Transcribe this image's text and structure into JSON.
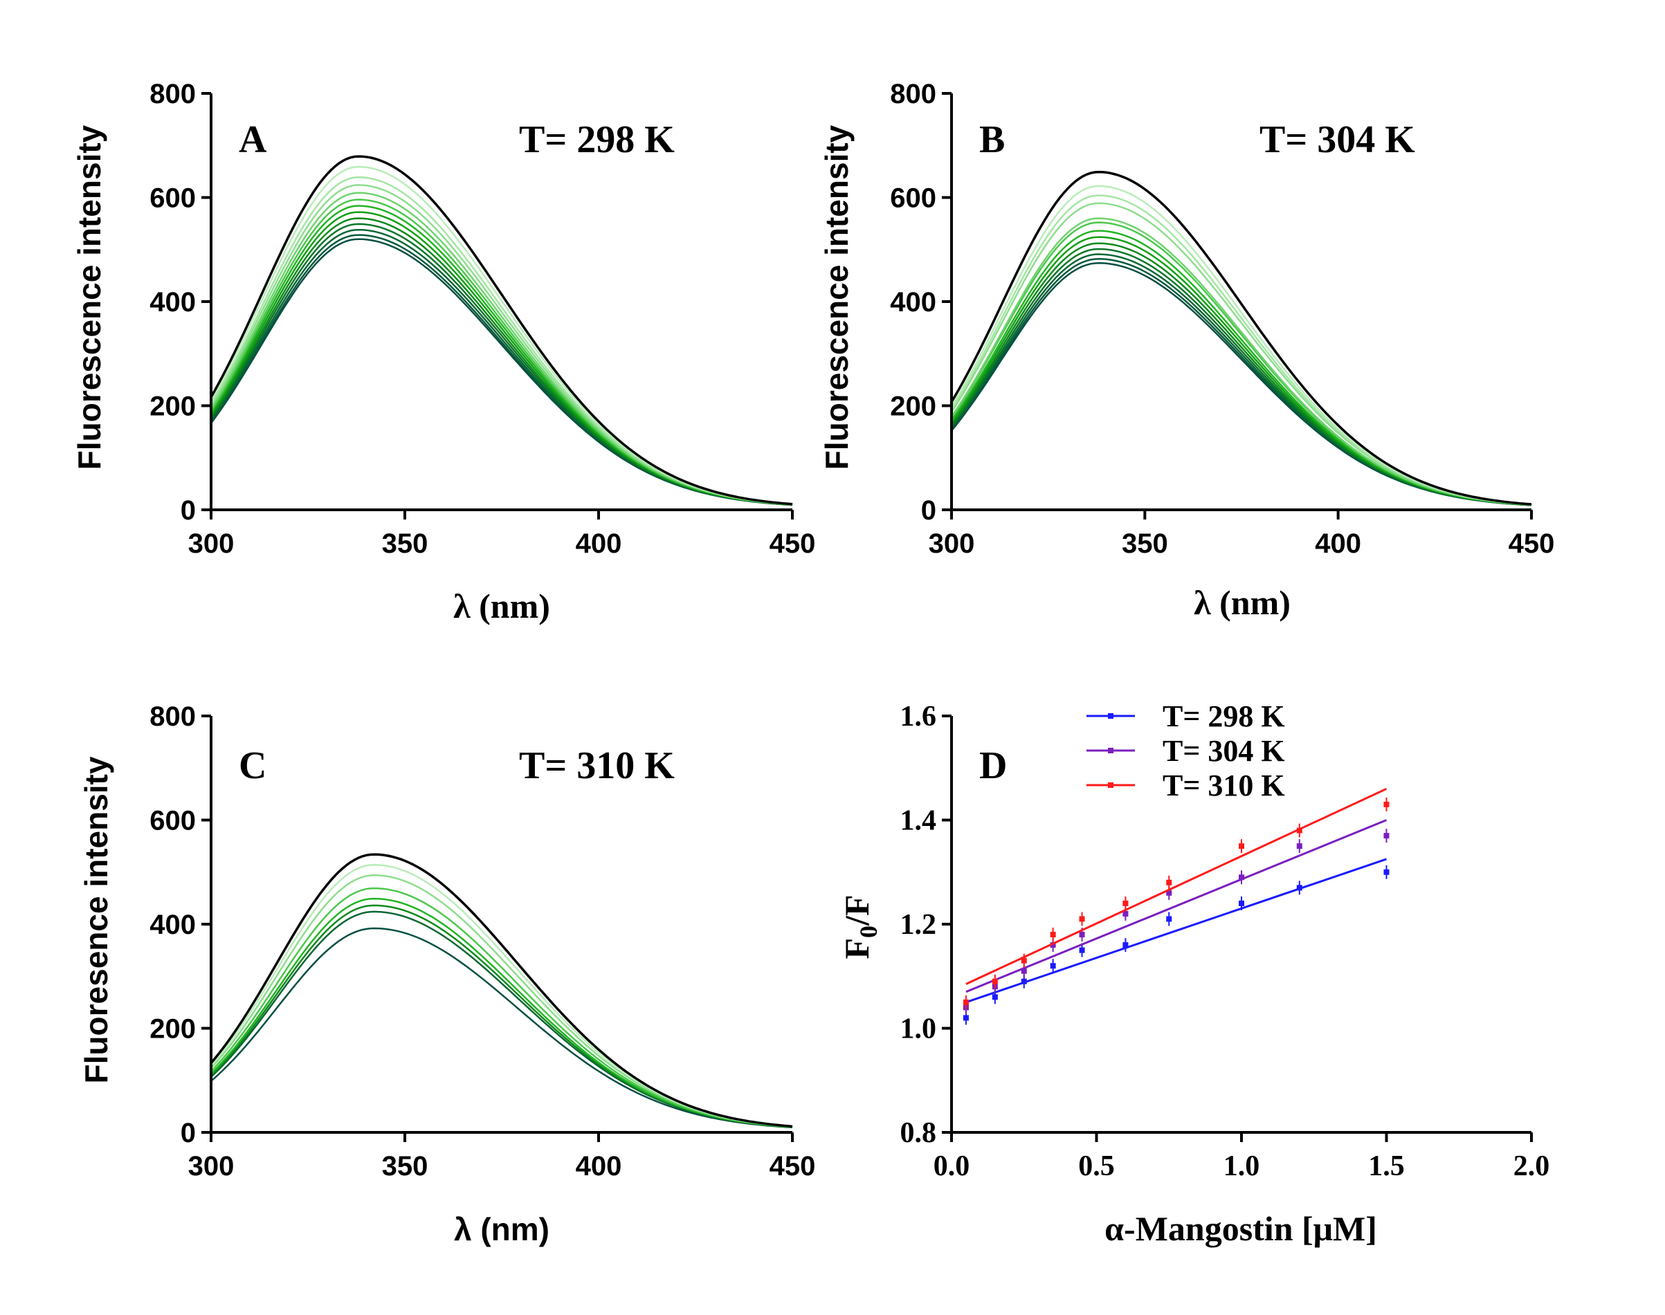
{
  "chart_data": [
    {
      "id": "A",
      "type": "line",
      "panel_label": "A",
      "annotation": "T= 298 K",
      "xlabel": "λ (nm)",
      "ylabel": "Fluorescence intensity",
      "xlim": [
        300,
        450
      ],
      "ylim": [
        0,
        800
      ],
      "xticks": [
        300,
        350,
        400,
        450
      ],
      "yticks": [
        0,
        200,
        400,
        600,
        800
      ],
      "peak_wavelength": 338,
      "series_peaks": [
        675,
        655,
        635,
        620,
        605,
        592,
        580,
        568,
        556,
        545,
        534,
        524,
        516
      ],
      "series_colors": [
        "#000000",
        "#b9ecb9",
        "#a4e6a4",
        "#8edd8e",
        "#6fd36f",
        "#4cc84c",
        "#22b422",
        "#11a011",
        "#0b8a1a",
        "#087628",
        "#076633",
        "#055a3b",
        "#054f42"
      ]
    },
    {
      "id": "B",
      "type": "line",
      "panel_label": "B",
      "annotation": "T= 304 K",
      "xlabel": "λ (nm)",
      "ylabel": "Fluorescence intensity",
      "xlim": [
        300,
        450
      ],
      "ylim": [
        0,
        800
      ],
      "xticks": [
        300,
        350,
        400,
        450
      ],
      "yticks": [
        0,
        200,
        400,
        600,
        800
      ],
      "peak_wavelength": 338,
      "series_peaks": [
        645,
        618,
        600,
        585,
        556,
        548,
        532,
        520,
        508,
        497,
        487,
        478,
        470
      ],
      "series_colors": [
        "#000000",
        "#b9ecb9",
        "#a4e6a4",
        "#8edd8e",
        "#6fd36f",
        "#4cc84c",
        "#22b422",
        "#11a011",
        "#0b8a1a",
        "#087628",
        "#076633",
        "#055a3b",
        "#054f42"
      ]
    },
    {
      "id": "C",
      "type": "line",
      "panel_label": "C",
      "annotation": "T= 310 K",
      "xlabel": "λ (nm)",
      "ylabel": "Fluoresence intensity",
      "xlim": [
        300,
        450
      ],
      "ylim": [
        0,
        800
      ],
      "xticks": [
        300,
        350,
        400,
        450
      ],
      "yticks": [
        0,
        200,
        400,
        600,
        800
      ],
      "peak_wavelength": 342,
      "series_peaks": [
        530,
        510,
        490,
        465,
        445,
        432,
        420,
        388
      ],
      "series_colors": [
        "#000000",
        "#b9ecb9",
        "#8edd8e",
        "#4cc84c",
        "#22b422",
        "#0b8a1a",
        "#076633",
        "#054f42"
      ]
    },
    {
      "id": "D",
      "type": "scatter",
      "panel_label": "D",
      "xlabel": "α-Mangostin [μM]",
      "ylabel": "F0/F",
      "ylabel_main": "F",
      "ylabel_sub": "0",
      "ylabel_tail": "/F",
      "xlim": [
        0.0,
        2.0
      ],
      "ylim": [
        0.8,
        1.6
      ],
      "xticks": [
        0.0,
        0.5,
        1.0,
        1.5,
        2.0
      ],
      "xtick_labels": [
        "0.0",
        "0.5",
        "1.0",
        "1.5",
        "2.0"
      ],
      "yticks": [
        0.8,
        1.0,
        1.2,
        1.4,
        1.6
      ],
      "ytick_labels": [
        "0.8",
        "1.0",
        "1.2",
        "1.4",
        "1.6"
      ],
      "legend_position": "top-center",
      "series": [
        {
          "name": "T= 298 K",
          "color": "#1a1aff",
          "x": [
            0.05,
            0.15,
            0.25,
            0.35,
            0.45,
            0.6,
            0.75,
            1.0,
            1.2,
            1.5
          ],
          "y": [
            1.02,
            1.06,
            1.09,
            1.12,
            1.15,
            1.16,
            1.21,
            1.24,
            1.27,
            1.3
          ],
          "fit": [
            [
              0.05,
              1.05
            ],
            [
              1.5,
              1.325
            ]
          ]
        },
        {
          "name": "T= 304 K",
          "color": "#7a1fbf",
          "x": [
            0.05,
            0.15,
            0.25,
            0.35,
            0.45,
            0.6,
            0.75,
            1.0,
            1.2,
            1.5
          ],
          "y": [
            1.04,
            1.08,
            1.11,
            1.16,
            1.18,
            1.22,
            1.26,
            1.29,
            1.35,
            1.37
          ],
          "fit": [
            [
              0.05,
              1.07
            ],
            [
              1.5,
              1.4
            ]
          ]
        },
        {
          "name": "T= 310 K",
          "color": "#ff1a1a",
          "x": [
            0.05,
            0.15,
            0.25,
            0.35,
            0.45,
            0.6,
            0.75,
            1.0,
            1.2,
            1.5
          ],
          "y": [
            1.05,
            1.09,
            1.13,
            1.18,
            1.21,
            1.24,
            1.28,
            1.35,
            1.38,
            1.43
          ],
          "fit": [
            [
              0.05,
              1.085
            ],
            [
              1.5,
              1.46
            ]
          ]
        }
      ]
    }
  ]
}
